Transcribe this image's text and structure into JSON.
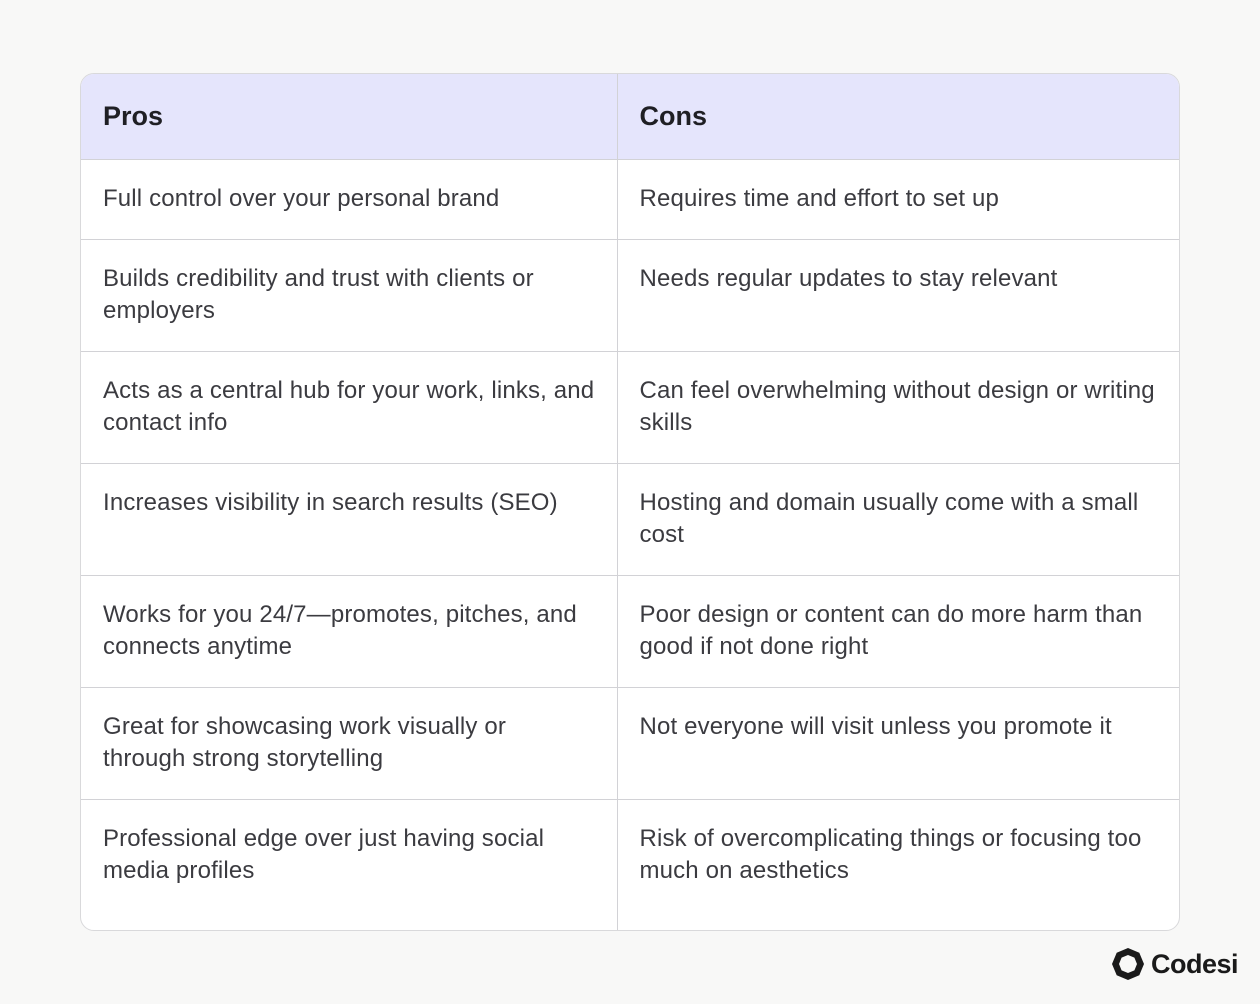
{
  "table": {
    "headers": [
      "Pros",
      "Cons"
    ],
    "rows": [
      {
        "pro": "Full control over your personal brand",
        "con": "Requires time and effort to set up"
      },
      {
        "pro": "Builds credibility and trust with clients or employers",
        "con": "Needs regular updates to stay relevant"
      },
      {
        "pro": "Acts as a central hub for your work, links, and contact info",
        "con": "Can feel overwhelming without design or writing skills"
      },
      {
        "pro": "Increases visibility in search results (SEO)",
        "con": "Hosting and domain usually come with a small cost"
      },
      {
        "pro": "Works for you 24/7—promotes, pitches, and connects anytime",
        "con": "Poor design or content can do more harm than good if not done right"
      },
      {
        "pro": "Great for showcasing work visually or through strong storytelling",
        "con": "Not everyone will visit unless you promote it"
      },
      {
        "pro": "Professional edge over just having social media profiles",
        "con": "Risk of overcomplicating things or focusing too much on aesthetics"
      }
    ]
  },
  "brand": {
    "name": "Codesi",
    "icon": "codesi-logo-icon"
  },
  "colors": {
    "header_bg": "#e5e5fc",
    "page_bg": "#f8f8f7"
  }
}
